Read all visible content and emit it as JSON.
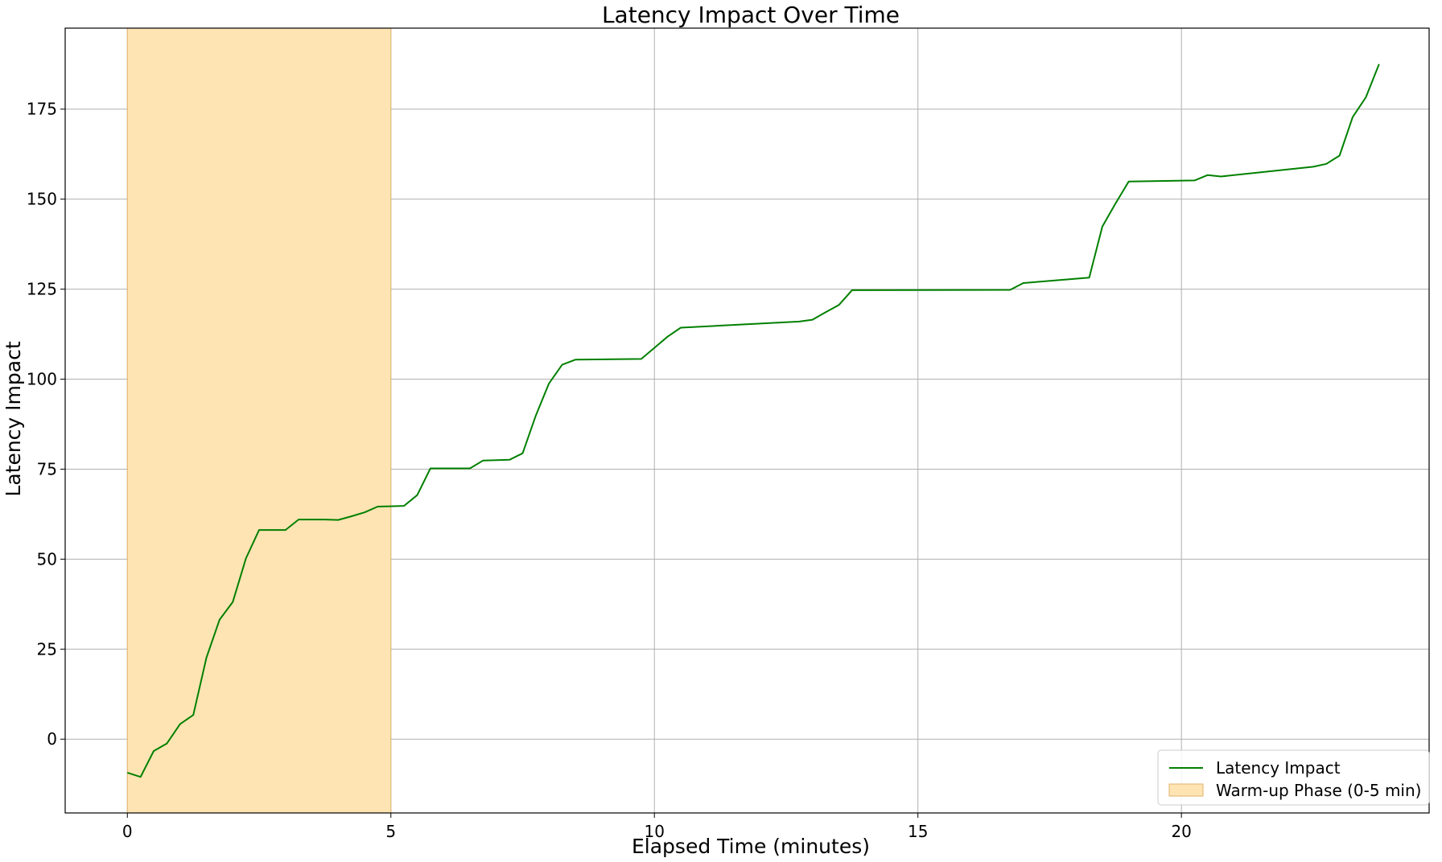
{
  "chart_data": {
    "type": "line",
    "title": "Latency Impact Over Time",
    "xlabel": "Elapsed Time (minutes)",
    "ylabel": "Latency Impact",
    "xlim": [
      -1.18,
      24.7
    ],
    "ylim": [
      -20.5,
      197.5
    ],
    "xticks": [
      0,
      5,
      10,
      15,
      20
    ],
    "yticks": [
      0,
      25,
      50,
      75,
      100,
      125,
      150,
      175
    ],
    "grid": true,
    "legend_position": "bottom-right",
    "colors": {
      "line": "#008000",
      "band": "#FFE4B3",
      "band_edge": "#E0B36B"
    },
    "series": [
      {
        "name": "Latency Impact",
        "x": [
          0,
          0.25,
          0.5,
          0.75,
          1.0,
          1.25,
          1.5,
          1.75,
          2.0,
          2.25,
          2.5,
          2.75,
          3.0,
          3.25,
          3.5,
          3.75,
          4.0,
          4.25,
          4.5,
          4.75,
          5.0,
          5.25,
          5.5,
          5.75,
          6.0,
          6.25,
          6.5,
          6.75,
          7.0,
          7.25,
          7.5,
          7.75,
          8.0,
          8.25,
          8.5,
          9.75,
          10.0,
          10.25,
          10.5,
          12.75,
          13.0,
          13.25,
          13.5,
          13.75,
          16.75,
          17.0,
          18.25,
          18.5,
          18.75,
          19.0,
          20.25,
          20.5,
          20.75,
          22.5,
          22.75,
          23.0,
          23.25,
          23.5,
          23.75
        ],
        "y": [
          -9.3,
          -10.5,
          -3.3,
          -1.2,
          4.2,
          6.7,
          22.6,
          33.2,
          38.1,
          50.2,
          58.1,
          58.1,
          58.1,
          61.0,
          61.0,
          61.0,
          60.9,
          61.9,
          63.0,
          64.6,
          64.7,
          64.8,
          67.8,
          75.2,
          75.2,
          75.2,
          75.2,
          77.4,
          77.5,
          77.6,
          79.4,
          89.9,
          98.8,
          104.0,
          105.4,
          105.6,
          108.7,
          111.8,
          114.3,
          116.0,
          116.5,
          118.6,
          120.6,
          124.7,
          124.8,
          126.7,
          128.2,
          142.4,
          148.8,
          154.9,
          155.2,
          156.7,
          156.3,
          159.0,
          159.8,
          162.1,
          172.8,
          178.3,
          187.5
        ]
      }
    ],
    "shaded_regions": [
      {
        "name": "Warm-up Phase (0-5 min)",
        "x_start": 0,
        "x_end": 5
      }
    ]
  }
}
